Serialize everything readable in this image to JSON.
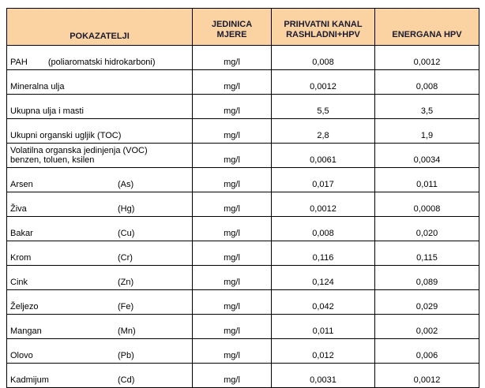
{
  "table": {
    "header": [
      "POKAZATELJI",
      "JEDINICA MJERE",
      "PRIHVATNI KANAL RASHLADNI+HPV",
      "ENERGANA HPV"
    ],
    "rows": [
      {
        "name": "PAH",
        "note": "(poliaromatski hidrokarboni)",
        "unit": "mg/l",
        "kanal": "0,008",
        "energana": "0,0012"
      },
      {
        "name": "Mineralna ulja",
        "unit": "mg/l",
        "kanal": "0,0012",
        "energana": "0,008"
      },
      {
        "name": "Ukupna ulja i masti",
        "unit": "mg/l",
        "kanal": "5,5",
        "energana": "3,5"
      },
      {
        "name": "Ukupni organski ugljik  (TOC)",
        "unit": "mg/l",
        "kanal": "2,8",
        "energana": "1,9"
      },
      {
        "name": "Volatilna organska jedinjenja  (VOC)",
        "line2": "benzen, toluen, ksilen",
        "unit": "mg/l",
        "kanal": "0,0061",
        "energana": "0,0034"
      },
      {
        "name": "Arsen",
        "symbol": "(As)",
        "unit": "mg/l",
        "kanal": "0,017",
        "energana": "0,011"
      },
      {
        "name": "Živa",
        "symbol": "(Hg)",
        "unit": "mg/l",
        "kanal": "0,0012",
        "energana": "0,0008"
      },
      {
        "name": "Bakar",
        "symbol": "(Cu)",
        "unit": "mg/l",
        "kanal": "0,008",
        "energana": "0,020"
      },
      {
        "name": "Krom",
        "symbol": "(Cr)",
        "unit": "mg/l",
        "kanal": "0,116",
        "energana": "0,115"
      },
      {
        "name": "Cink",
        "symbol": "(Zn)",
        "unit": "mg/l",
        "kanal": "0,124",
        "energana": "0,089"
      },
      {
        "name": "Željezo",
        "symbol": "(Fe)",
        "unit": "mg/l",
        "kanal": "0,042",
        "energana": "0,029"
      },
      {
        "name": "Mangan",
        "symbol": "(Mn)",
        "unit": "mg/l",
        "kanal": "0,011",
        "energana": "0,002"
      },
      {
        "name": "Olovo",
        "symbol": "(Pb)",
        "unit": "mg/l",
        "kanal": "0,012",
        "energana": "0,006"
      },
      {
        "name": "Kadmijum",
        "symbol": "(Cd)",
        "unit": "mg/l",
        "kanal": "0,0031",
        "energana": "0,0012"
      }
    ]
  }
}
